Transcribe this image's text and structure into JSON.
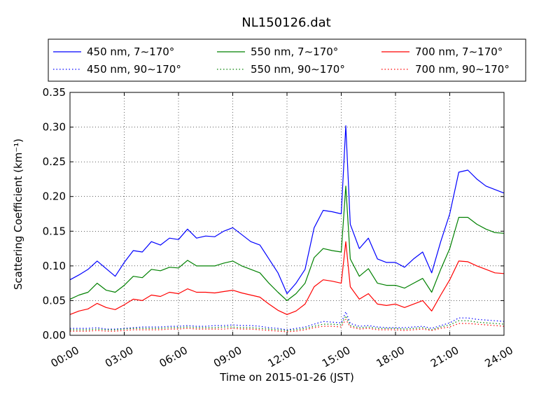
{
  "chart_data": {
    "type": "line",
    "title": "NL150126.dat",
    "xlabel": "Time on 2015-01-26 (JST)",
    "ylabel": "Scattering Coefficient (km⁻¹)",
    "xlim": [
      "2015-01-26 00:00",
      "2015-01-27 00:00"
    ],
    "ylim": [
      0,
      0.35
    ],
    "x_ticks": [
      "00:00",
      "03:00",
      "06:00",
      "09:00",
      "12:00",
      "15:00",
      "18:00",
      "21:00",
      "24:00"
    ],
    "y_ticks": [
      "0.00",
      "0.05",
      "0.10",
      "0.15",
      "0.20",
      "0.25",
      "0.30",
      "0.35"
    ],
    "grid": true,
    "legend_position": "top",
    "x": [
      "00:00",
      "00:30",
      "01:00",
      "01:30",
      "02:00",
      "02:30",
      "03:00",
      "03:30",
      "04:00",
      "04:30",
      "05:00",
      "05:30",
      "06:00",
      "06:30",
      "07:00",
      "07:30",
      "08:00",
      "08:30",
      "09:00",
      "09:30",
      "10:00",
      "10:30",
      "11:00",
      "11:30",
      "12:00",
      "12:30",
      "13:00",
      "13:30",
      "14:00",
      "14:30",
      "15:00",
      "15:15",
      "15:30",
      "16:00",
      "16:30",
      "17:00",
      "17:30",
      "18:00",
      "18:30",
      "19:00",
      "19:30",
      "20:00",
      "20:30",
      "21:00",
      "21:30",
      "22:00",
      "22:30",
      "23:00",
      "23:30",
      "24:00"
    ],
    "series": [
      {
        "name": "450 nm, 7∼170°",
        "color": "#0000ff",
        "style": "solid",
        "values": [
          0.08,
          0.087,
          0.095,
          0.107,
          0.096,
          0.085,
          0.105,
          0.122,
          0.12,
          0.135,
          0.13,
          0.14,
          0.138,
          0.153,
          0.14,
          0.143,
          0.142,
          0.15,
          0.155,
          0.145,
          0.135,
          0.13,
          0.11,
          0.09,
          0.06,
          0.075,
          0.095,
          0.155,
          0.18,
          0.178,
          0.175,
          0.302,
          0.16,
          0.125,
          0.14,
          0.11,
          0.105,
          0.105,
          0.098,
          0.11,
          0.12,
          0.09,
          0.135,
          0.175,
          0.235,
          0.238,
          0.225,
          0.215,
          0.21,
          0.205
        ]
      },
      {
        "name": "450 nm, 90∼170°",
        "color": "#0000ff",
        "style": "dotted",
        "values": [
          0.01,
          0.01,
          0.01,
          0.011,
          0.009,
          0.009,
          0.01,
          0.011,
          0.012,
          0.012,
          0.012,
          0.013,
          0.013,
          0.014,
          0.013,
          0.013,
          0.014,
          0.014,
          0.015,
          0.014,
          0.014,
          0.013,
          0.011,
          0.01,
          0.008,
          0.01,
          0.012,
          0.016,
          0.02,
          0.019,
          0.018,
          0.034,
          0.017,
          0.013,
          0.014,
          0.012,
          0.011,
          0.011,
          0.011,
          0.012,
          0.013,
          0.01,
          0.014,
          0.018,
          0.025,
          0.025,
          0.023,
          0.022,
          0.021,
          0.02
        ]
      },
      {
        "name": "550 nm, 7∼170°",
        "color": "#008000",
        "style": "solid",
        "values": [
          0.052,
          0.058,
          0.062,
          0.075,
          0.065,
          0.062,
          0.072,
          0.085,
          0.083,
          0.095,
          0.093,
          0.098,
          0.097,
          0.108,
          0.1,
          0.1,
          0.1,
          0.104,
          0.107,
          0.1,
          0.095,
          0.09,
          0.075,
          0.062,
          0.05,
          0.06,
          0.075,
          0.112,
          0.125,
          0.122,
          0.12,
          0.215,
          0.11,
          0.085,
          0.096,
          0.075,
          0.072,
          0.072,
          0.068,
          0.075,
          0.082,
          0.062,
          0.095,
          0.125,
          0.17,
          0.17,
          0.16,
          0.153,
          0.148,
          0.147
        ]
      },
      {
        "name": "550 nm, 90∼170°",
        "color": "#008000",
        "style": "dotted",
        "values": [
          0.008,
          0.008,
          0.008,
          0.009,
          0.008,
          0.008,
          0.009,
          0.01,
          0.01,
          0.01,
          0.01,
          0.011,
          0.011,
          0.012,
          0.011,
          0.011,
          0.011,
          0.012,
          0.012,
          0.011,
          0.011,
          0.01,
          0.009,
          0.008,
          0.007,
          0.008,
          0.01,
          0.013,
          0.016,
          0.016,
          0.015,
          0.028,
          0.014,
          0.011,
          0.012,
          0.01,
          0.01,
          0.01,
          0.009,
          0.01,
          0.011,
          0.008,
          0.012,
          0.015,
          0.021,
          0.021,
          0.019,
          0.018,
          0.017,
          0.016
        ]
      },
      {
        "name": "700 nm, 7∼170°",
        "color": "#ff0000",
        "style": "solid",
        "values": [
          0.03,
          0.035,
          0.038,
          0.046,
          0.04,
          0.037,
          0.044,
          0.052,
          0.05,
          0.058,
          0.056,
          0.062,
          0.06,
          0.067,
          0.062,
          0.062,
          0.061,
          0.063,
          0.065,
          0.061,
          0.058,
          0.055,
          0.045,
          0.036,
          0.03,
          0.035,
          0.045,
          0.07,
          0.08,
          0.078,
          0.075,
          0.135,
          0.07,
          0.052,
          0.06,
          0.045,
          0.043,
          0.045,
          0.04,
          0.045,
          0.05,
          0.035,
          0.058,
          0.08,
          0.107,
          0.106,
          0.1,
          0.095,
          0.09,
          0.089
        ]
      },
      {
        "name": "700 nm, 90∼170°",
        "color": "#ff0000",
        "style": "dotted",
        "values": [
          0.006,
          0.006,
          0.006,
          0.007,
          0.006,
          0.006,
          0.007,
          0.008,
          0.008,
          0.008,
          0.008,
          0.009,
          0.009,
          0.01,
          0.009,
          0.009,
          0.009,
          0.009,
          0.01,
          0.009,
          0.009,
          0.008,
          0.007,
          0.006,
          0.005,
          0.006,
          0.008,
          0.011,
          0.013,
          0.013,
          0.012,
          0.023,
          0.012,
          0.009,
          0.01,
          0.008,
          0.008,
          0.008,
          0.007,
          0.008,
          0.009,
          0.007,
          0.01,
          0.012,
          0.017,
          0.017,
          0.016,
          0.015,
          0.014,
          0.013
        ]
      }
    ]
  }
}
